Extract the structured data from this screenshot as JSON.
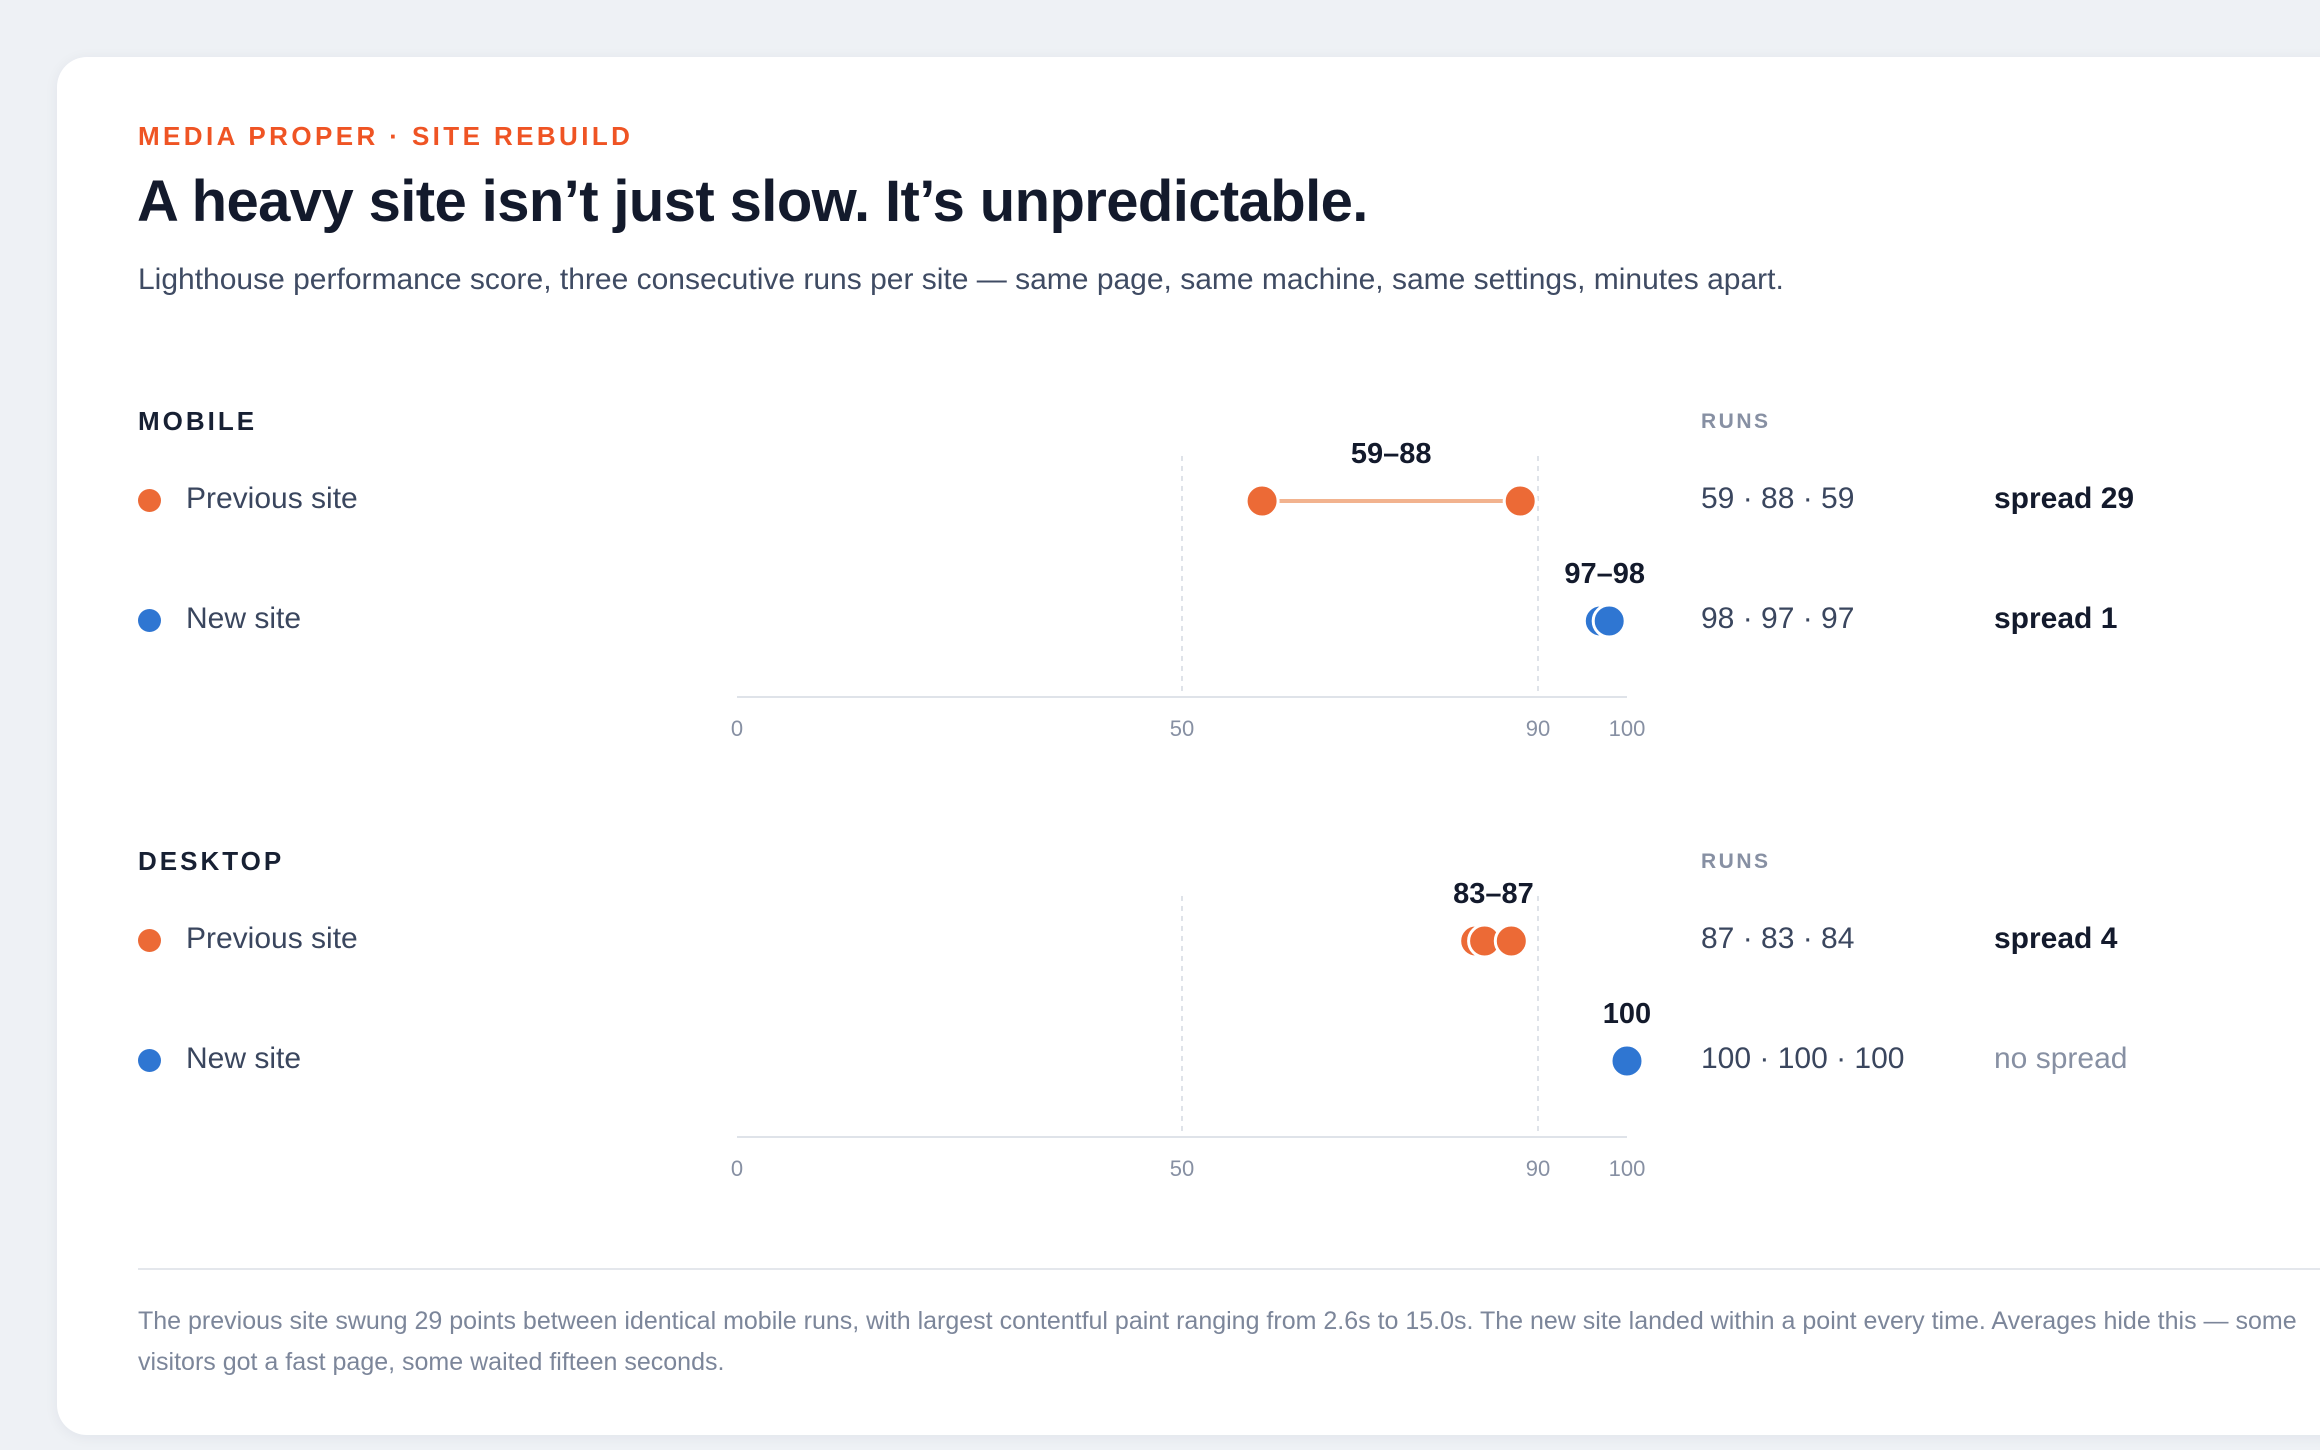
{
  "eyebrow": "MEDIA PROPER · SITE REBUILD",
  "title": "A heavy site isn’t just slow. It’s unpredictable.",
  "subtitle": "Lighthouse performance score, three consecutive runs per site — same page, same machine, same settings, minutes apart.",
  "runs_header": "RUNS",
  "colors": {
    "accent": "#ef5424",
    "previous": "#ec6a36",
    "previous_line": "#f2b38f",
    "new": "#2f76d2",
    "text": "#131a2c",
    "muted": "#8790a3"
  },
  "chart_data": [
    {
      "type": "dot-range",
      "section": "MOBILE",
      "x_ticks": [
        0,
        50,
        90,
        100
      ],
      "xlim": [
        0,
        100
      ],
      "rows": [
        {
          "label": "Previous site",
          "series": "previous",
          "runs": [
            59,
            88,
            59
          ],
          "range_label": "59–88",
          "runs_text": "59 · 88 · 59",
          "spread_text": "spread 29",
          "spread_style": "bold"
        },
        {
          "label": "New site",
          "series": "new",
          "runs": [
            98,
            97,
            97
          ],
          "range_label": "97–98",
          "runs_text": "98 · 97 · 97",
          "spread_text": "spread 1",
          "spread_style": "bold"
        }
      ]
    },
    {
      "type": "dot-range",
      "section": "DESKTOP",
      "x_ticks": [
        0,
        50,
        90,
        100
      ],
      "xlim": [
        0,
        100
      ],
      "rows": [
        {
          "label": "Previous site",
          "series": "previous",
          "runs": [
            87,
            83,
            84
          ],
          "range_label": "83–87",
          "runs_text": "87 · 83 · 84",
          "spread_text": "spread 4",
          "spread_style": "bold"
        },
        {
          "label": "New site",
          "series": "new",
          "runs": [
            100,
            100,
            100
          ],
          "range_label": "100",
          "runs_text": "100 · 100 · 100",
          "spread_text": "no spread",
          "spread_style": "muted"
        }
      ]
    }
  ],
  "footnote": "The previous site swung 29 points between identical mobile runs, with largest contentful paint ranging from 2.6s to 15.0s. The new site landed within a point every time. Averages hide this — some visitors got a fast page, some waited fifteen seconds."
}
